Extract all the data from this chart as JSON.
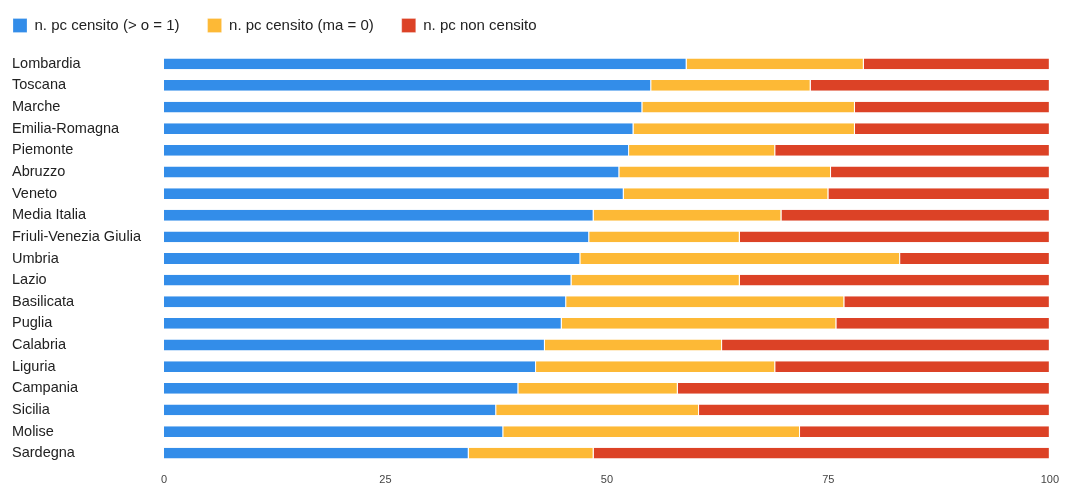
{
  "chart_data": {
    "type": "bar",
    "orientation": "horizontal",
    "stacked": true,
    "categories": [
      "Lombardia",
      "Toscana",
      "Marche",
      "Emilia-Romagna",
      "Piemonte",
      "Abruzzo",
      "Veneto",
      "Media Italia",
      "Friuli-Venezia Giulia",
      "Umbria",
      "Lazio",
      "Basilicata",
      "Puglia",
      "Calabria",
      "Liguria",
      "Campania",
      "Sicilia",
      "Molise",
      "Sardegna"
    ],
    "series": [
      {
        "name": "n. pc censito (> o = 1)",
        "color": "#338de9",
        "values": [
          59,
          55,
          54,
          53,
          52.5,
          51.4,
          51.9,
          48.5,
          48,
          47,
          46,
          45.4,
          44.9,
          43,
          42,
          40,
          37.5,
          38.3,
          34.4
        ]
      },
      {
        "name": "n. pc censito (ma = 0)",
        "color": "#fdb936",
        "values": [
          20,
          18,
          24,
          25,
          16.5,
          23.9,
          23.1,
          21.2,
          17,
          36.1,
          19,
          31.4,
          31,
          20,
          27,
          18,
          22.9,
          33.5,
          14.1
        ]
      },
      {
        "name": "n. pc non censito",
        "color": "#dc4226",
        "values": [
          21,
          27,
          22,
          22,
          31,
          24.7,
          25,
          30.3,
          35,
          16.9,
          35,
          23.2,
          24.1,
          37,
          31,
          42,
          39.6,
          28.2,
          51.5
        ]
      }
    ],
    "xlim": [
      0,
      100
    ],
    "xticks": [
      0,
      25,
      50,
      75,
      100
    ],
    "legend": "top left"
  }
}
